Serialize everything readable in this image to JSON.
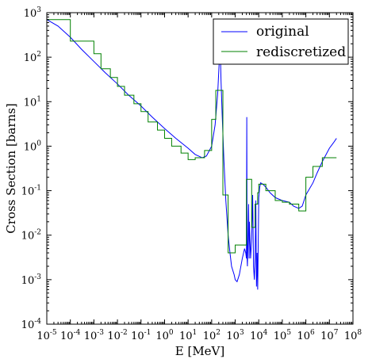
{
  "chart_data": {
    "type": "line",
    "title": "",
    "xlabel": "E [MeV]",
    "ylabel": "Cross Section [barns]",
    "xscale": "log",
    "yscale": "log",
    "xlim": [
      1e-05,
      100000000
    ],
    "ylim": [
      0.0001,
      1000
    ],
    "grid": false,
    "legend_position": "top-right",
    "x_ticks": [
      {
        "base": "10",
        "exp": "-5",
        "value": 1e-05
      },
      {
        "base": "10",
        "exp": "-4",
        "value": 0.0001
      },
      {
        "base": "10",
        "exp": "-3",
        "value": 0.001
      },
      {
        "base": "10",
        "exp": "-2",
        "value": 0.01
      },
      {
        "base": "10",
        "exp": "-1",
        "value": 0.1
      },
      {
        "base": "10",
        "exp": "0",
        "value": 1
      },
      {
        "base": "10",
        "exp": "1",
        "value": 10
      },
      {
        "base": "10",
        "exp": "2",
        "value": 100
      },
      {
        "base": "10",
        "exp": "3",
        "value": 1000
      },
      {
        "base": "10",
        "exp": "4",
        "value": 10000
      },
      {
        "base": "10",
        "exp": "5",
        "value": 100000
      },
      {
        "base": "10",
        "exp": "6",
        "value": 1000000
      },
      {
        "base": "10",
        "exp": "7",
        "value": 10000000
      },
      {
        "base": "10",
        "exp": "8",
        "value": 100000000
      }
    ],
    "y_ticks": [
      {
        "base": "10",
        "exp": "-4",
        "value": 0.0001
      },
      {
        "base": "10",
        "exp": "-3",
        "value": 0.001
      },
      {
        "base": "10",
        "exp": "-2",
        "value": 0.01
      },
      {
        "base": "10",
        "exp": "-1",
        "value": 0.1
      },
      {
        "base": "10",
        "exp": "0",
        "value": 1
      },
      {
        "base": "10",
        "exp": "1",
        "value": 10
      },
      {
        "base": "10",
        "exp": "2",
        "value": 100
      },
      {
        "base": "10",
        "exp": "3",
        "value": 1000
      }
    ],
    "series": [
      {
        "name": "original",
        "color": "#0000ff",
        "style": "line",
        "x": [
          1e-05,
          3e-05,
          0.0001,
          0.0003,
          0.001,
          0.003,
          0.01,
          0.03,
          0.1,
          0.3,
          1,
          3,
          10,
          20,
          40,
          60,
          100,
          140,
          180,
          210,
          230,
          250,
          280,
          330,
          400,
          500,
          600,
          700,
          900,
          1000,
          1200,
          1500,
          2000,
          2500,
          2800,
          3000,
          3100,
          3200,
          3300,
          3500,
          3700,
          3900,
          4000,
          4200,
          4500,
          5000,
          5500,
          6000,
          6500,
          7000,
          7500,
          8000,
          8500,
          9000,
          10000,
          11000,
          12000,
          15000,
          20000,
          30000,
          50000,
          100000,
          200000,
          300000,
          500000,
          700000,
          1000000,
          2000000,
          3000000,
          5000000,
          10000000,
          15000000,
          20000000
        ],
        "y": [
          700,
          500,
          280,
          150,
          80,
          45,
          25,
          14,
          8,
          4.5,
          2.5,
          1.5,
          0.9,
          0.65,
          0.55,
          0.6,
          1.0,
          3.0,
          15,
          80,
          200,
          30,
          5,
          0.5,
          0.06,
          0.01,
          0.004,
          0.002,
          0.0013,
          0.001,
          0.0009,
          0.0013,
          0.003,
          0.005,
          0.004,
          0.003,
          4.5,
          0.003,
          0.002,
          0.008,
          0.05,
          0.003,
          0.02,
          0.01,
          0.003,
          0.008,
          0.08,
          0.002,
          0.001,
          0.003,
          0.06,
          0.0007,
          0.004,
          0.0006,
          0.07,
          0.12,
          0.15,
          0.14,
          0.12,
          0.09,
          0.07,
          0.06,
          0.055,
          0.045,
          0.04,
          0.045,
          0.08,
          0.15,
          0.25,
          0.45,
          0.9,
          1.2,
          1.5
        ]
      },
      {
        "name": "rediscretized",
        "color": "#008000",
        "style": "step",
        "x": [
          1e-05,
          0.0001,
          0.001,
          0.002,
          0.005,
          0.01,
          0.02,
          0.05,
          0.1,
          0.2,
          0.5,
          1,
          2,
          5,
          10,
          20,
          50,
          100,
          150,
          300,
          500,
          1000,
          3000,
          5000,
          7000,
          9000,
          10000,
          20000,
          50000,
          100000,
          200000,
          500000,
          1000000,
          2000000,
          5000000,
          10000000
        ],
        "y": [
          700,
          230,
          120,
          55,
          35,
          22,
          14,
          9,
          6,
          3.5,
          2.3,
          1.5,
          1.0,
          0.7,
          0.5,
          0.55,
          0.8,
          4,
          18,
          0.08,
          0.004,
          0.006,
          0.18,
          0.015,
          0.05,
          0.09,
          0.14,
          0.1,
          0.06,
          0.055,
          0.05,
          0.035,
          0.2,
          0.35,
          0.55,
          0.55
        ]
      }
    ]
  }
}
